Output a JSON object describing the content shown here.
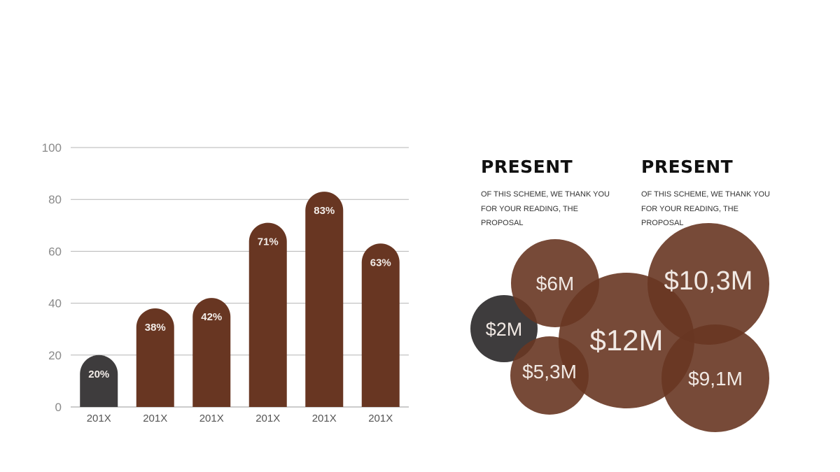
{
  "chart_data": [
    {
      "type": "bar",
      "categories": [
        "201X",
        "201X",
        "201X",
        "201X",
        "201X",
        "201X"
      ],
      "values": [
        20,
        38,
        42,
        71,
        83,
        63
      ],
      "value_labels": [
        "20%",
        "38%",
        "42%",
        "71%",
        "83%",
        "63%"
      ],
      "bar_colors": [
        "#3e3c3d",
        "#683622",
        "#683622",
        "#683622",
        "#683622",
        "#683622"
      ],
      "ylim": [
        0,
        100
      ],
      "yticks": [
        0,
        20,
        40,
        60,
        80,
        100
      ],
      "grid": true,
      "title": "",
      "xlabel": "",
      "ylabel": ""
    },
    {
      "type": "bubble",
      "labels": [
        "$2M",
        "$6M",
        "$5,3M",
        "$12M",
        "$10,3M",
        "$9,1M"
      ],
      "values": [
        2,
        6,
        5.3,
        12,
        10.3,
        9.1
      ],
      "colors": [
        "#3e3c3d",
        "#683622",
        "#683622",
        "#683622",
        "#683622",
        "#683622"
      ]
    }
  ],
  "text_blocks": [
    {
      "title": "PRESENT",
      "body": "OF THIS SCHEME, WE THANK YOU FOR YOUR READING, THE PROPOSAL"
    },
    {
      "title": "PRESENT",
      "body": "OF THIS SCHEME, WE THANK YOU FOR YOUR READING, THE PROPOSAL"
    }
  ]
}
